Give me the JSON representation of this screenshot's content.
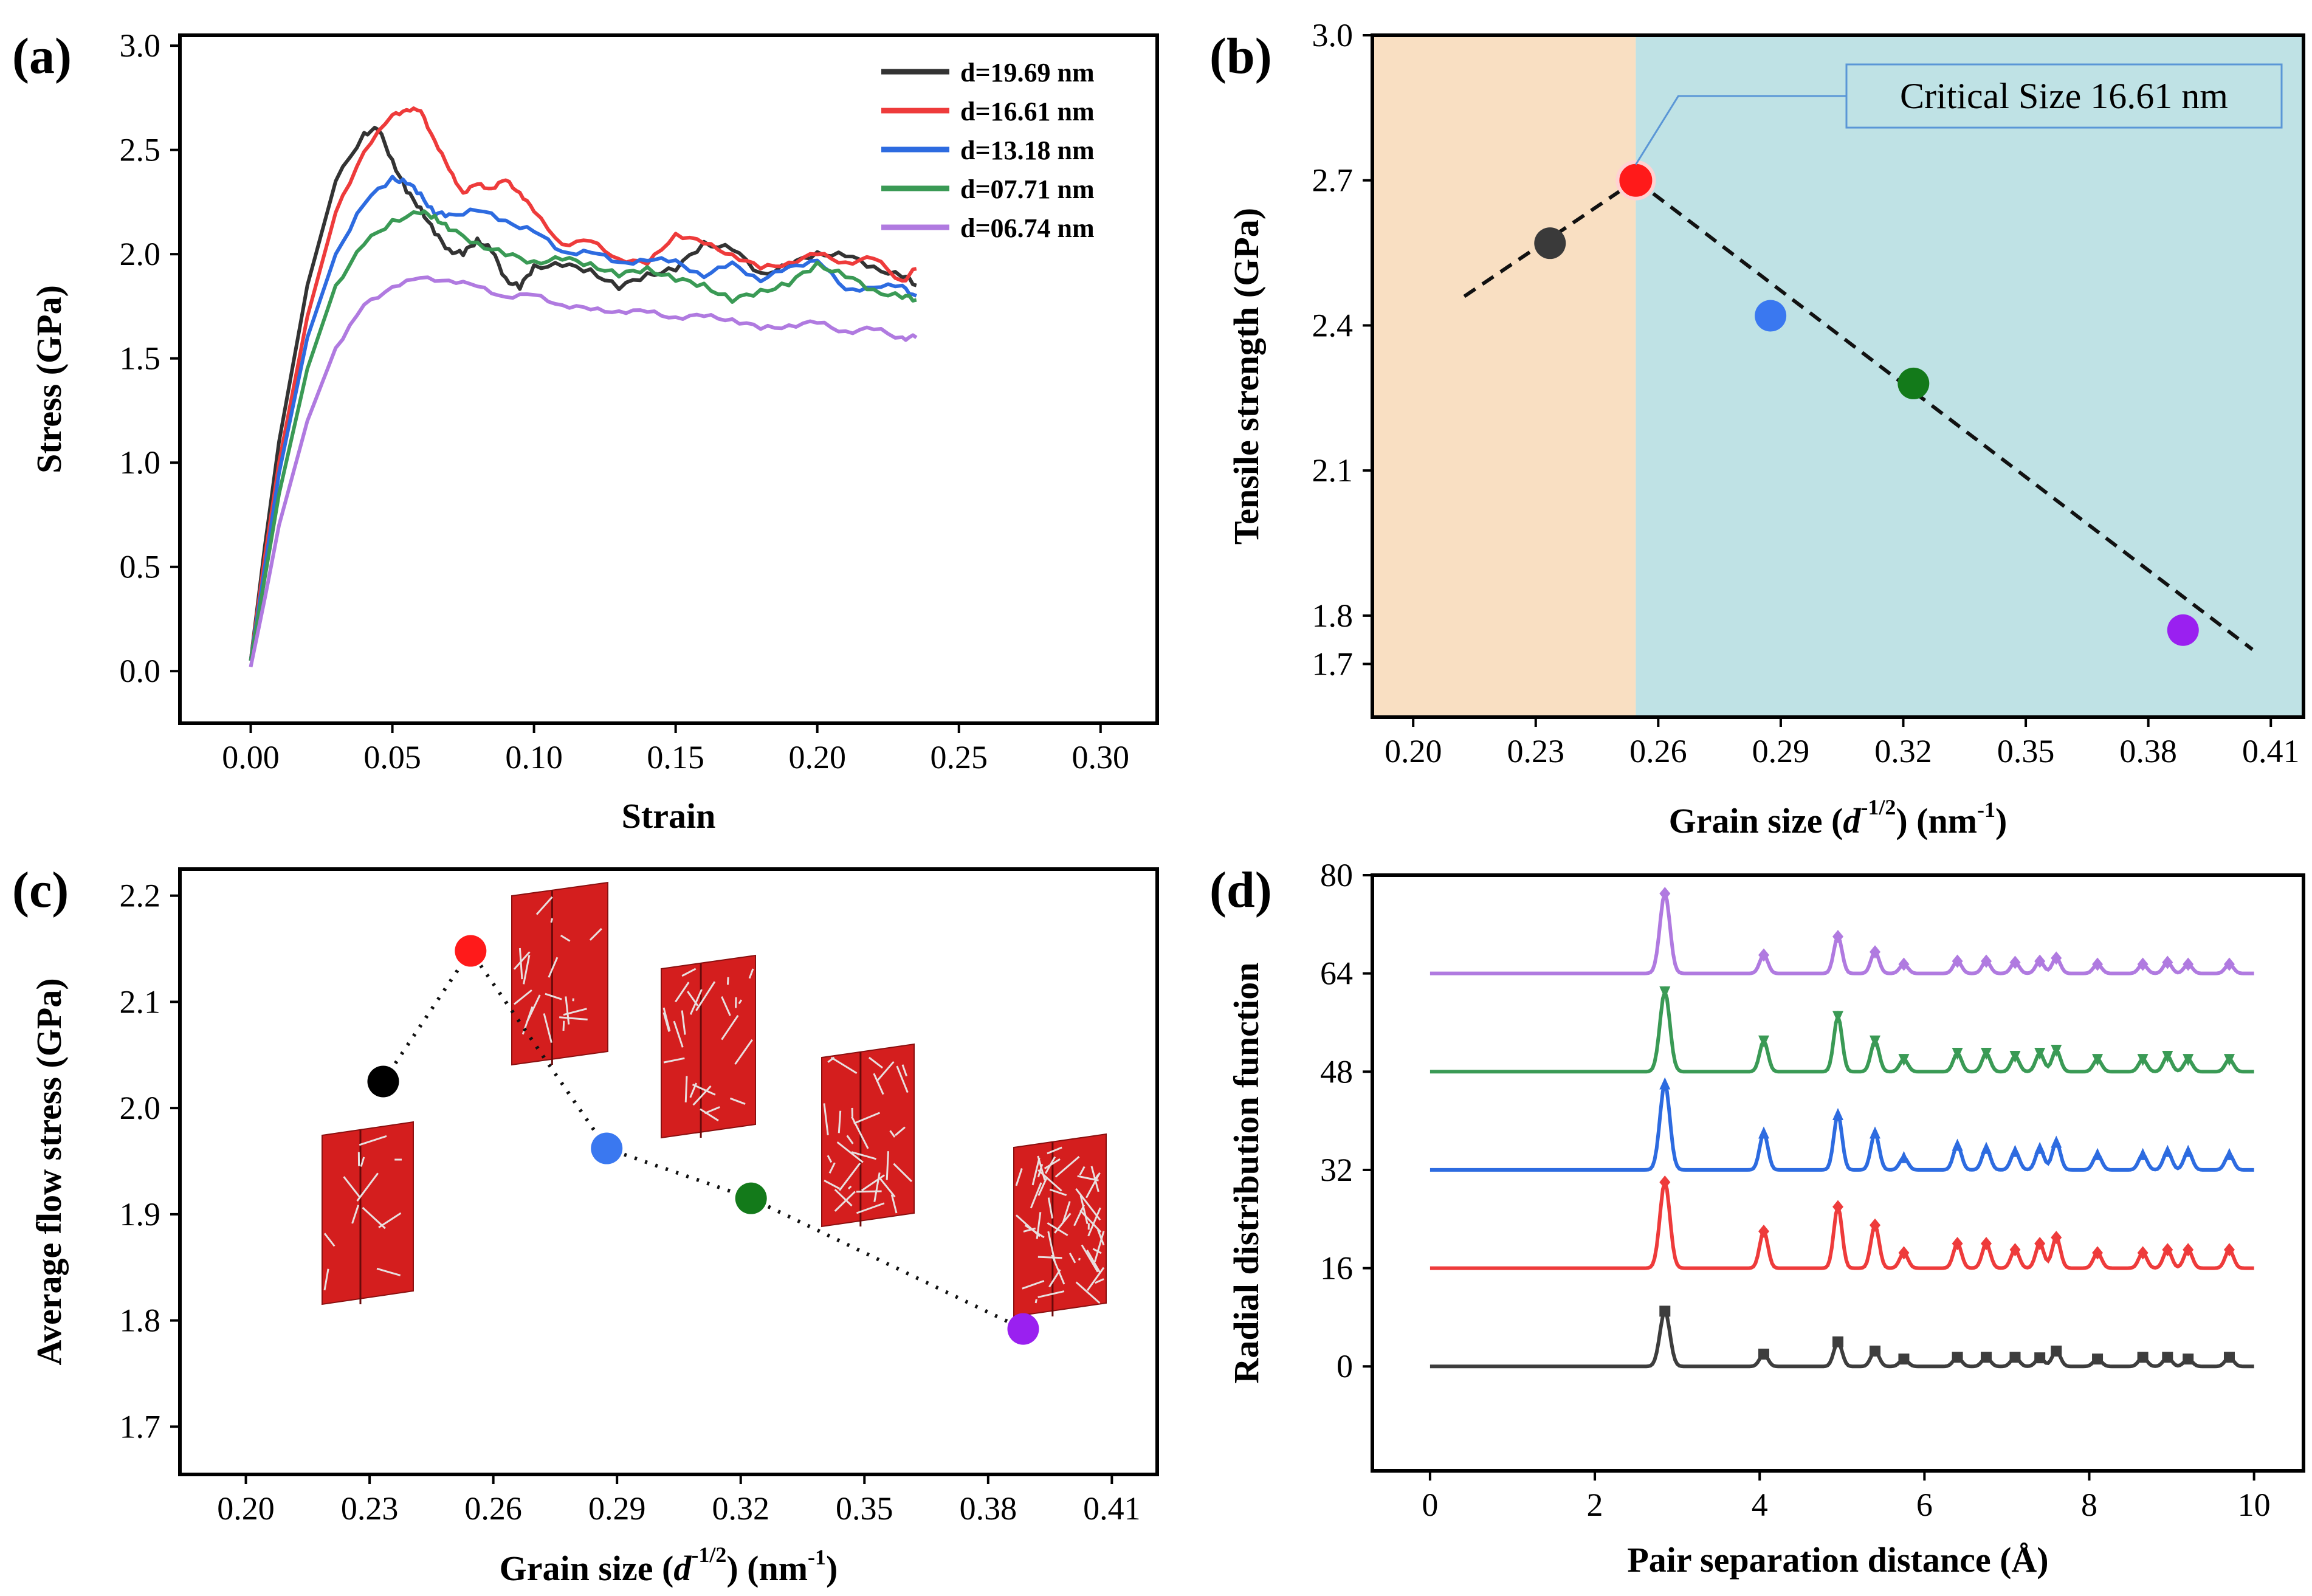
{
  "chart_data": [
    {
      "panel": "(a)",
      "type": "line",
      "title": "",
      "xlabel": "Strain",
      "ylabel": "Stress (GPa)",
      "xlim": [
        -0.025,
        0.32
      ],
      "ylim": [
        -0.25,
        3.05
      ],
      "xticks": [
        "0.00",
        "0.05",
        "0.10",
        "0.15",
        "0.20",
        "0.25",
        "0.30"
      ],
      "yticks": [
        "0.0",
        "0.5",
        "1.0",
        "1.5",
        "2.0",
        "2.5",
        "3.0"
      ],
      "legend_position": "top-right",
      "series": [
        {
          "name": "d=19.69 nm",
          "color": "#333333",
          "x": [
            0.0,
            0.005,
            0.01,
            0.02,
            0.03,
            0.04,
            0.045,
            0.05,
            0.055,
            0.06,
            0.065,
            0.07,
            0.075,
            0.08,
            0.085,
            0.09,
            0.095,
            0.1,
            0.11,
            0.12,
            0.13,
            0.14,
            0.15,
            0.16,
            0.17,
            0.18,
            0.19,
            0.2,
            0.21,
            0.22,
            0.23,
            0.235
          ],
          "y": [
            0.05,
            0.6,
            1.1,
            1.85,
            2.35,
            2.58,
            2.6,
            2.45,
            2.3,
            2.22,
            2.1,
            2.02,
            2.0,
            2.07,
            2.02,
            1.88,
            1.84,
            1.94,
            1.95,
            1.92,
            1.84,
            1.9,
            1.93,
            2.05,
            2.03,
            1.9,
            1.95,
            2.0,
            2.0,
            1.93,
            1.9,
            1.85
          ]
        },
        {
          "name": "d=16.61 nm",
          "color": "#ee3b3b",
          "x": [
            0.0,
            0.005,
            0.01,
            0.02,
            0.03,
            0.04,
            0.05,
            0.055,
            0.06,
            0.065,
            0.07,
            0.075,
            0.08,
            0.085,
            0.09,
            0.095,
            0.1,
            0.11,
            0.12,
            0.13,
            0.14,
            0.15,
            0.16,
            0.17,
            0.18,
            0.19,
            0.2,
            0.21,
            0.22,
            0.23,
            0.235
          ],
          "y": [
            0.05,
            0.55,
            1.0,
            1.7,
            2.2,
            2.5,
            2.66,
            2.7,
            2.68,
            2.55,
            2.4,
            2.3,
            2.33,
            2.32,
            2.35,
            2.3,
            2.2,
            2.05,
            2.06,
            1.98,
            1.95,
            2.1,
            2.05,
            2.0,
            1.93,
            1.96,
            2.0,
            1.96,
            1.98,
            1.87,
            1.93
          ]
        },
        {
          "name": "d=13.18 nm",
          "color": "#2d6be0",
          "x": [
            0.0,
            0.005,
            0.01,
            0.02,
            0.03,
            0.04,
            0.05,
            0.055,
            0.06,
            0.065,
            0.07,
            0.08,
            0.09,
            0.1,
            0.11,
            0.12,
            0.13,
            0.14,
            0.15,
            0.16,
            0.17,
            0.18,
            0.19,
            0.2,
            0.21,
            0.22,
            0.23,
            0.235
          ],
          "y": [
            0.05,
            0.5,
            0.95,
            1.6,
            2.0,
            2.25,
            2.36,
            2.35,
            2.28,
            2.2,
            2.18,
            2.22,
            2.15,
            2.12,
            2.0,
            2.02,
            1.95,
            1.98,
            1.96,
            1.9,
            1.95,
            1.88,
            1.93,
            1.98,
            1.82,
            1.85,
            1.84,
            1.8
          ]
        },
        {
          "name": "d=07.71 nm",
          "color": "#3a9a55",
          "x": [
            0.0,
            0.005,
            0.01,
            0.02,
            0.03,
            0.04,
            0.05,
            0.06,
            0.065,
            0.07,
            0.08,
            0.09,
            0.1,
            0.11,
            0.12,
            0.13,
            0.14,
            0.15,
            0.16,
            0.17,
            0.18,
            0.19,
            0.2,
            0.21,
            0.22,
            0.23,
            0.235
          ],
          "y": [
            0.05,
            0.45,
            0.85,
            1.45,
            1.85,
            2.05,
            2.16,
            2.2,
            2.18,
            2.12,
            2.05,
            2.0,
            1.96,
            1.98,
            1.95,
            1.9,
            1.93,
            1.88,
            1.85,
            1.78,
            1.82,
            1.86,
            1.95,
            1.9,
            1.82,
            1.8,
            1.78
          ]
        },
        {
          "name": "d=06.74 nm",
          "color": "#b07ae0",
          "x": [
            0.0,
            0.005,
            0.01,
            0.02,
            0.03,
            0.04,
            0.05,
            0.06,
            0.07,
            0.08,
            0.09,
            0.1,
            0.11,
            0.12,
            0.13,
            0.14,
            0.15,
            0.16,
            0.17,
            0.18,
            0.19,
            0.2,
            0.21,
            0.22,
            0.23,
            0.235
          ],
          "y": [
            0.02,
            0.35,
            0.7,
            1.2,
            1.55,
            1.75,
            1.85,
            1.88,
            1.88,
            1.84,
            1.8,
            1.8,
            1.76,
            1.73,
            1.73,
            1.72,
            1.7,
            1.7,
            1.69,
            1.64,
            1.66,
            1.67,
            1.63,
            1.64,
            1.6,
            1.6
          ]
        }
      ]
    },
    {
      "panel": "(b)",
      "type": "scatter",
      "title": "",
      "xlabel": "Grain size",
      "x_symbol": "d",
      "x_exponent": "-1/2",
      "x_unit": "nm",
      "x_unit_exponent": "-1",
      "ylabel": "Tensile strength (GPa)",
      "xlim": [
        0.19,
        0.418
      ],
      "ylim": [
        1.59,
        3.0
      ],
      "xticks": [
        "0.20",
        "0.23",
        "0.26",
        "0.29",
        "0.32",
        "0.35",
        "0.38",
        "0.41"
      ],
      "yticks": [
        "1.7",
        "1.8",
        "2.1",
        "2.4",
        "2.7",
        "3.0"
      ],
      "ytick_values": [
        1.7,
        1.8,
        2.1,
        2.4,
        2.7,
        3.0
      ],
      "annotation": "Critical Size 16.61 nm",
      "critical_x": 0.2545,
      "regions": [
        {
          "x_from": 0.19,
          "x_to": 0.2545,
          "color": "#f9dfc2"
        },
        {
          "x_from": 0.2545,
          "x_to": 0.418,
          "color": "#bfe2e5"
        }
      ],
      "points": [
        {
          "x": 0.2335,
          "y": 2.57,
          "color": "#3a3a3a"
        },
        {
          "x": 0.2545,
          "y": 2.7,
          "color": "#ff1a1a"
        },
        {
          "x": 0.2875,
          "y": 2.42,
          "color": "#3a78f0"
        },
        {
          "x": 0.3225,
          "y": 2.28,
          "color": "#137a1a"
        },
        {
          "x": 0.3885,
          "y": 1.77,
          "color": "#9a20f0"
        }
      ],
      "fit_lines": [
        {
          "x": [
            0.2125,
            0.2545
          ],
          "y": [
            2.46,
            2.7
          ]
        },
        {
          "x": [
            0.2545,
            0.4055
          ],
          "y": [
            2.7,
            1.73
          ]
        }
      ]
    },
    {
      "panel": "(c)",
      "type": "scatter",
      "title": "",
      "xlabel": "Grain size",
      "x_symbol": "d",
      "x_exponent": "-1/2",
      "x_unit": "nm",
      "x_unit_exponent": "-1",
      "ylabel": "Average flow stress (GPa)",
      "xlim": [
        0.184,
        0.421
      ],
      "ylim": [
        1.655,
        2.225
      ],
      "xticks": [
        "0.20",
        "0.23",
        "0.26",
        "0.29",
        "0.32",
        "0.35",
        "0.38",
        "0.41"
      ],
      "yticks": [
        "1.7",
        "1.8",
        "1.9",
        "2.0",
        "2.1",
        "2.2"
      ],
      "points": [
        {
          "x": 0.2333,
          "y": 2.025,
          "color": "#000000"
        },
        {
          "x": 0.2545,
          "y": 2.148,
          "color": "#ff1a1a"
        },
        {
          "x": 0.2875,
          "y": 1.962,
          "color": "#3a78f0"
        },
        {
          "x": 0.3225,
          "y": 1.915,
          "color": "#137a1a"
        },
        {
          "x": 0.3885,
          "y": 1.792,
          "color": "#9a20f0"
        }
      ],
      "insets": [
        "grain-structure-19.69",
        "grain-structure-16.61",
        "grain-structure-13.18",
        "grain-structure-07.71",
        "grain-structure-06.74"
      ]
    },
    {
      "panel": "(d)",
      "type": "line",
      "title": "",
      "xlabel": "Pair separation distance (Å)",
      "ylabel": "Radial distribution function",
      "xlim": [
        -0.7,
        10.6
      ],
      "ylim": [
        -17,
        80
      ],
      "xticks": [
        "0",
        "2",
        "4",
        "6",
        "8",
        "10"
      ],
      "yticks": [
        "0",
        "16",
        "32",
        "48",
        "64",
        "80"
      ],
      "peak_positions": [
        2.85,
        4.05,
        4.95,
        5.4,
        5.75,
        6.4,
        6.75,
        7.1,
        7.4,
        7.6,
        8.1,
        8.65,
        8.95,
        9.2,
        9.7
      ],
      "series": [
        {
          "name": "d=19.69 nm",
          "offset": 0,
          "color": "#3d3d3d",
          "marker": "square",
          "peak_heights": [
            9,
            2,
            4,
            2.5,
            1.2,
            1.5,
            1.5,
            1.5,
            1.4,
            2.5,
            1.2,
            1.5,
            1.5,
            1.2,
            1.5
          ]
        },
        {
          "name": "d=16.61 nm",
          "offset": 16,
          "color": "#ee3b3b",
          "marker": "diamond",
          "peak_heights": [
            14,
            6,
            10,
            7,
            2.5,
            4,
            4,
            3,
            4,
            5,
            2.5,
            2.5,
            3,
            3,
            3
          ]
        },
        {
          "name": "d=13.18 nm",
          "offset": 32,
          "color": "#2d6be0",
          "marker": "triangle-up",
          "peak_heights": [
            14,
            6,
            9,
            6,
            2,
            4,
            3.5,
            3,
            3.5,
            4.5,
            2.5,
            2.5,
            3,
            3,
            2.5
          ]
        },
        {
          "name": "d=07.71 nm",
          "offset": 48,
          "color": "#3a9a55",
          "marker": "triangle-down",
          "peak_heights": [
            13,
            5,
            9,
            5,
            2,
            3,
            3,
            2.5,
            3,
            3.5,
            2,
            2,
            2.5,
            2,
            2
          ]
        },
        {
          "name": "d=06.74 nm",
          "offset": 64,
          "color": "#b07ae0",
          "marker": "diamond",
          "peak_heights": [
            13,
            3,
            6,
            3.5,
            1.5,
            2,
            2,
            1.8,
            2,
            2.5,
            1.5,
            1.5,
            1.8,
            1.5,
            1.5
          ]
        }
      ]
    }
  ]
}
